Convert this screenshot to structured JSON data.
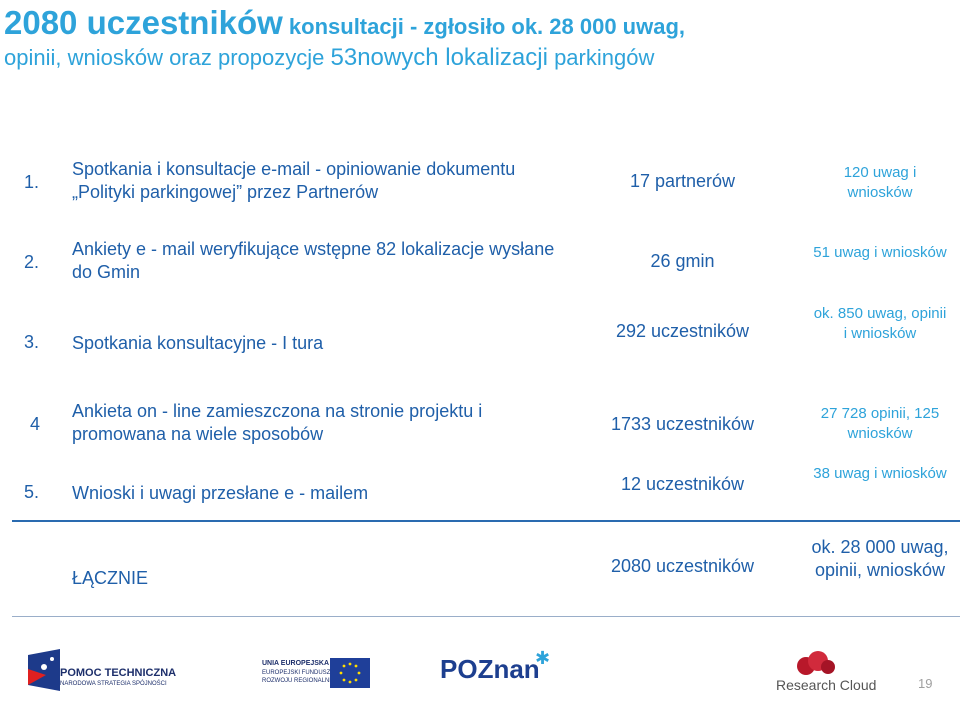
{
  "title": {
    "line1_a": "2080 uczestników",
    "line1_b": " konsultacji  - zgłosiło ok. 28 000 uwag,",
    "line2_a": "opinii, wniosków oraz propozycje ",
    "line2_b": "53nowych lokalizacji",
    "line2_c": " parkingów"
  },
  "rows": [
    {
      "num": "1.",
      "desc": "Spotkania  i konsultacje  e-mail - opiniowanie dokumentu „Polityki parkingowej”  przez Partnerów",
      "count": "17 partnerów",
      "result": "120 uwag i wniosków"
    },
    {
      "num": "2.",
      "desc": "Ankiety e - mail weryfikujące wstępne 82   lokalizacje wysłane do Gmin",
      "count": "26 gmin",
      "result": "51 uwag i wniosków"
    },
    {
      "num": "3.",
      "desc": "Spotkania konsultacyjne  -  I tura",
      "count": "292 uczestników",
      "result": "ok. 850 uwag, opinii  i wniosków"
    },
    {
      "num": "4",
      "desc": "Ankieta on - line zamieszczona na stronie projektu i promowana na wiele sposobów",
      "count": "1733 uczestników",
      "result": "27 728  opinii, 125 wniosków"
    },
    {
      "num": "5.",
      "desc": "Wnioski  i uwagi przesłane e - mailem",
      "count": "12  uczestników",
      "result": "38 uwag i wniosków"
    }
  ],
  "total": {
    "label": "ŁĄCZNIE",
    "count": "2080 uczestników",
    "result": "ok. 28 000 uwag, opinii, wniosków"
  },
  "footer": {
    "logo1_line1": "POMOC TECHNICZNA",
    "logo1_line2": "NARODOWA STRATEGIA SPÓJNOŚCI",
    "logo2_line1": "UNIA EUROPEJSKA",
    "logo2_line2": "EUROPEJSKI FUNDUSZ",
    "logo2_line3": "ROZWOJU REGIONALNEGO",
    "logo3": "POZnan",
    "logo4": "Research Cloud",
    "page_number": "19"
  }
}
